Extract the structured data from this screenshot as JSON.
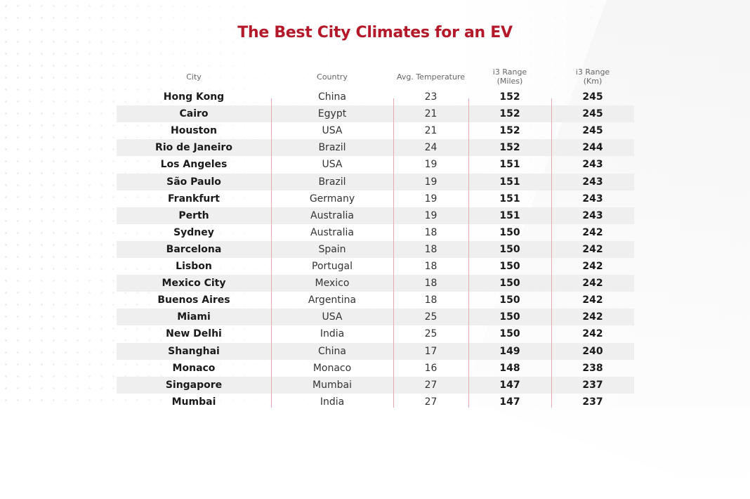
{
  "chart_data": {
    "type": "table",
    "title": "The Best City Climates for an EV",
    "columns": [
      "City",
      "Country",
      "Avg. Temperature",
      "i3 Range\n(Miles)",
      "i3 Range\n(Km)"
    ],
    "rows": [
      [
        "Hong Kong",
        "China",
        "23",
        "152",
        "245"
      ],
      [
        "Cairo",
        "Egypt",
        "21",
        "152",
        "245"
      ],
      [
        "Houston",
        "USA",
        "21",
        "152",
        "245"
      ],
      [
        "Rio de Janeiro",
        "Brazil",
        "24",
        "152",
        "244"
      ],
      [
        "Los Angeles",
        "USA",
        "19",
        "151",
        "243"
      ],
      [
        "São Paulo",
        "Brazil",
        "19",
        "151",
        "243"
      ],
      [
        "Frankfurt",
        "Germany",
        "19",
        "151",
        "243"
      ],
      [
        "Perth",
        "Australia",
        "19",
        "151",
        "243"
      ],
      [
        "Sydney",
        "Australia",
        "18",
        "150",
        "242"
      ],
      [
        "Barcelona",
        "Spain",
        "18",
        "150",
        "242"
      ],
      [
        "Lisbon",
        "Portugal",
        "18",
        "150",
        "242"
      ],
      [
        "Mexico City",
        "Mexico",
        "18",
        "150",
        "242"
      ],
      [
        "Buenos Aires",
        "Argentina",
        "18",
        "150",
        "242"
      ],
      [
        "Miami",
        "USA",
        "25",
        "150",
        "242"
      ],
      [
        "New Delhi",
        "India",
        "25",
        "150",
        "242"
      ],
      [
        "Shanghai",
        "China",
        "17",
        "149",
        "240"
      ],
      [
        "Monaco",
        "Monaco",
        "16",
        "148",
        "238"
      ],
      [
        "Singapore",
        "Mumbai",
        "27",
        "147",
        "237"
      ],
      [
        "Mumbai",
        "India",
        "27",
        "147",
        "237"
      ]
    ],
    "colors": {
      "title": "#b3192b",
      "divider": "#e7a9b0",
      "stripe": "#efefef"
    }
  }
}
